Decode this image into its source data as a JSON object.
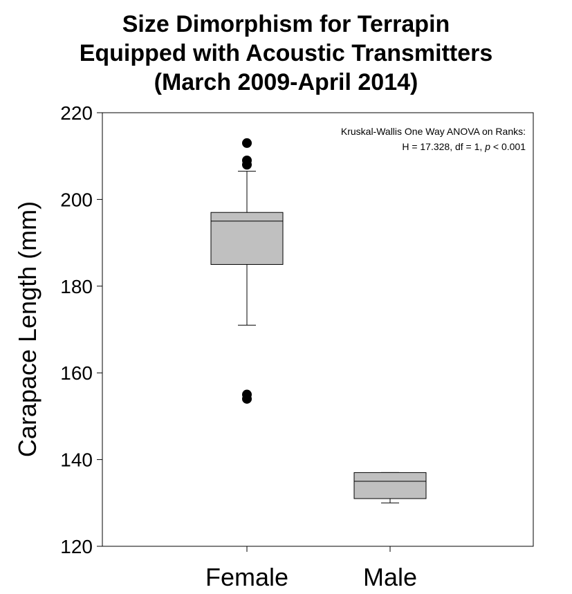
{
  "chart_data": {
    "type": "box",
    "title": [
      "Size Dimorphism for Terrapin",
      "Equipped with Acoustic Transmitters",
      "(March 2009-April 2014)"
    ],
    "xlabel": "",
    "ylabel": "Carapace Length (mm)",
    "ylim": [
      120,
      220
    ],
    "yticks": [
      120,
      140,
      160,
      180,
      200,
      220
    ],
    "categories": [
      "Female",
      "Male"
    ],
    "boxes": [
      {
        "category": "Female",
        "whisker_low": 171,
        "q1": 185,
        "median": 195,
        "q3": 197,
        "whisker_high": 206.5,
        "outliers": [
          213,
          209,
          208,
          155,
          154
        ]
      },
      {
        "category": "Male",
        "whisker_low": 130,
        "q1": 131,
        "median": 135,
        "q3": 137,
        "whisker_high": 137,
        "outliers": []
      }
    ],
    "annotation": {
      "line1": "Kruskal-Wallis One Way ANOVA on Ranks:",
      "line2_prefix": "H = 17.328, df = 1, ",
      "line2_italic": "p",
      "line2_suffix": " < 0.001"
    },
    "colors": {
      "box_fill": "#c0c0c0",
      "stroke": "#000000"
    },
    "grid": false,
    "legend": "none"
  }
}
